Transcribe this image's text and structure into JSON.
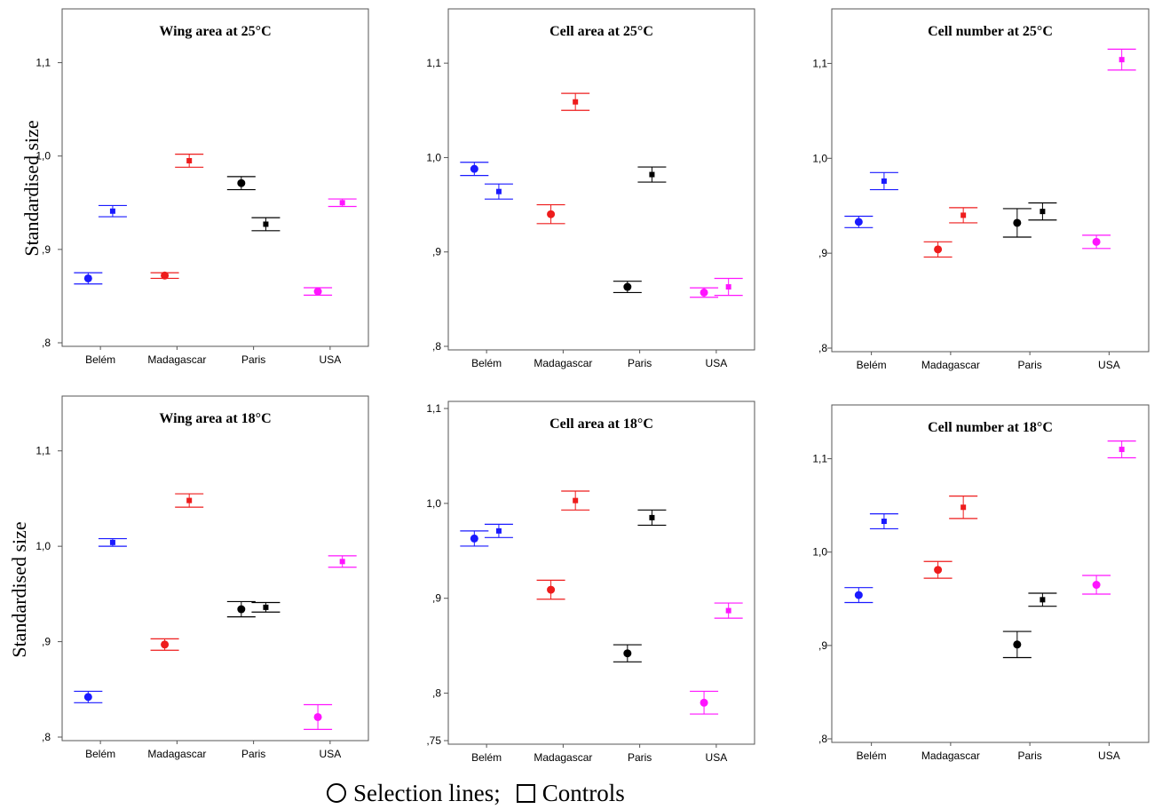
{
  "y_axis_label": "Standardised size",
  "legend": {
    "selection_label": "Selection lines;",
    "control_label": "Controls"
  },
  "colors": {
    "Belém": "#1a1aff",
    "Madagascar": "#ee1c1c",
    "Paris": "#000000",
    "USA": "#ff14ff"
  },
  "chart_data": [
    {
      "type": "scatter",
      "title": "Wing area at 25°C",
      "categories": [
        "Belém",
        "Madagascar",
        "Paris",
        "USA"
      ],
      "ylim": [
        0.8,
        1.15
      ],
      "yticks": [
        ",8",
        ",9",
        "1,0",
        "1,1"
      ],
      "tick_values": [
        0.8,
        0.9,
        1.0,
        1.1
      ],
      "series": [
        {
          "name": "Selection lines",
          "marker": "circle",
          "values": [
            0.869,
            0.872,
            0.971,
            0.855
          ],
          "errors": [
            0.006,
            0.003,
            0.007,
            0.004
          ]
        },
        {
          "name": "Controls",
          "marker": "square",
          "values": [
            0.941,
            0.995,
            0.927,
            0.95
          ],
          "errors": [
            0.006,
            0.007,
            0.007,
            0.004
          ]
        }
      ]
    },
    {
      "type": "scatter",
      "title": "Cell area at 25°C",
      "categories": [
        "Belém",
        "Madagascar",
        "Paris",
        "USA"
      ],
      "ylim": [
        0.8,
        1.15
      ],
      "yticks": [
        ",8",
        ",9",
        "1,0",
        "1,1"
      ],
      "tick_values": [
        0.8,
        0.9,
        1.0,
        1.1
      ],
      "series": [
        {
          "name": "Selection lines",
          "marker": "circle",
          "values": [
            0.988,
            0.94,
            0.863,
            0.857
          ],
          "errors": [
            0.007,
            0.01,
            0.006,
            0.005
          ]
        },
        {
          "name": "Controls",
          "marker": "square",
          "values": [
            0.964,
            1.059,
            0.982,
            0.863
          ],
          "errors": [
            0.008,
            0.009,
            0.008,
            0.009
          ]
        }
      ]
    },
    {
      "type": "scatter",
      "title": "Cell number at 25°C",
      "categories": [
        "Belém",
        "Madagascar",
        "Paris",
        "USA"
      ],
      "ylim": [
        0.8,
        1.15
      ],
      "yticks": [
        ",8",
        ",9",
        "1,0",
        "1,1"
      ],
      "tick_values": [
        0.8,
        0.9,
        1.0,
        1.1
      ],
      "series": [
        {
          "name": "Selection lines",
          "marker": "circle",
          "values": [
            0.933,
            0.904,
            0.932,
            0.912
          ],
          "errors": [
            0.006,
            0.008,
            0.015,
            0.007
          ]
        },
        {
          "name": "Controls",
          "marker": "square",
          "values": [
            0.976,
            0.94,
            0.944,
            1.104
          ],
          "errors": [
            0.009,
            0.008,
            0.009,
            0.011
          ]
        }
      ]
    },
    {
      "type": "scatter",
      "title": "Wing area at 18°C",
      "categories": [
        "Belém",
        "Madagascar",
        "Paris",
        "USA"
      ],
      "ylim": [
        0.8,
        1.15
      ],
      "yticks": [
        ",8",
        ",9",
        "1,0",
        "1,1"
      ],
      "tick_values": [
        0.8,
        0.9,
        1.0,
        1.1
      ],
      "series": [
        {
          "name": "Selection lines",
          "marker": "circle",
          "values": [
            0.842,
            0.897,
            0.934,
            0.821
          ],
          "errors": [
            0.006,
            0.006,
            0.008,
            0.013
          ]
        },
        {
          "name": "Controls",
          "marker": "square",
          "values": [
            1.004,
            1.048,
            0.936,
            0.984
          ],
          "errors": [
            0.004,
            0.007,
            0.005,
            0.006
          ]
        }
      ]
    },
    {
      "type": "scatter",
      "title": "Cell area at 18°C",
      "categories": [
        "Belém",
        "Madagascar",
        "Paris",
        "USA"
      ],
      "ylim": [
        0.75,
        1.1
      ],
      "yticks": [
        ",75",
        ",8",
        ",9",
        "1,0",
        "1,1"
      ],
      "tick_values": [
        0.75,
        0.8,
        0.9,
        1.0,
        1.1
      ],
      "series": [
        {
          "name": "Selection lines",
          "marker": "circle",
          "values": [
            0.963,
            0.909,
            0.842,
            0.79
          ],
          "errors": [
            0.008,
            0.01,
            0.009,
            0.012
          ]
        },
        {
          "name": "Controls",
          "marker": "square",
          "values": [
            0.971,
            1.003,
            0.985,
            0.887
          ],
          "errors": [
            0.007,
            0.01,
            0.008,
            0.008
          ]
        }
      ]
    },
    {
      "type": "scatter",
      "title": "Cell number at 18°C",
      "categories": [
        "Belém",
        "Madagascar",
        "Paris",
        "USA"
      ],
      "ylim": [
        0.8,
        1.15
      ],
      "yticks": [
        ",8",
        ",9",
        "1,0",
        "1,1"
      ],
      "tick_values": [
        0.8,
        0.9,
        1.0,
        1.1
      ],
      "series": [
        {
          "name": "Selection lines",
          "marker": "circle",
          "values": [
            0.954,
            0.981,
            0.901,
            0.965
          ],
          "errors": [
            0.008,
            0.009,
            0.014,
            0.01
          ]
        },
        {
          "name": "Controls",
          "marker": "square",
          "values": [
            1.033,
            1.048,
            0.949,
            1.11
          ],
          "errors": [
            0.008,
            0.012,
            0.007,
            0.009
          ]
        }
      ]
    }
  ]
}
